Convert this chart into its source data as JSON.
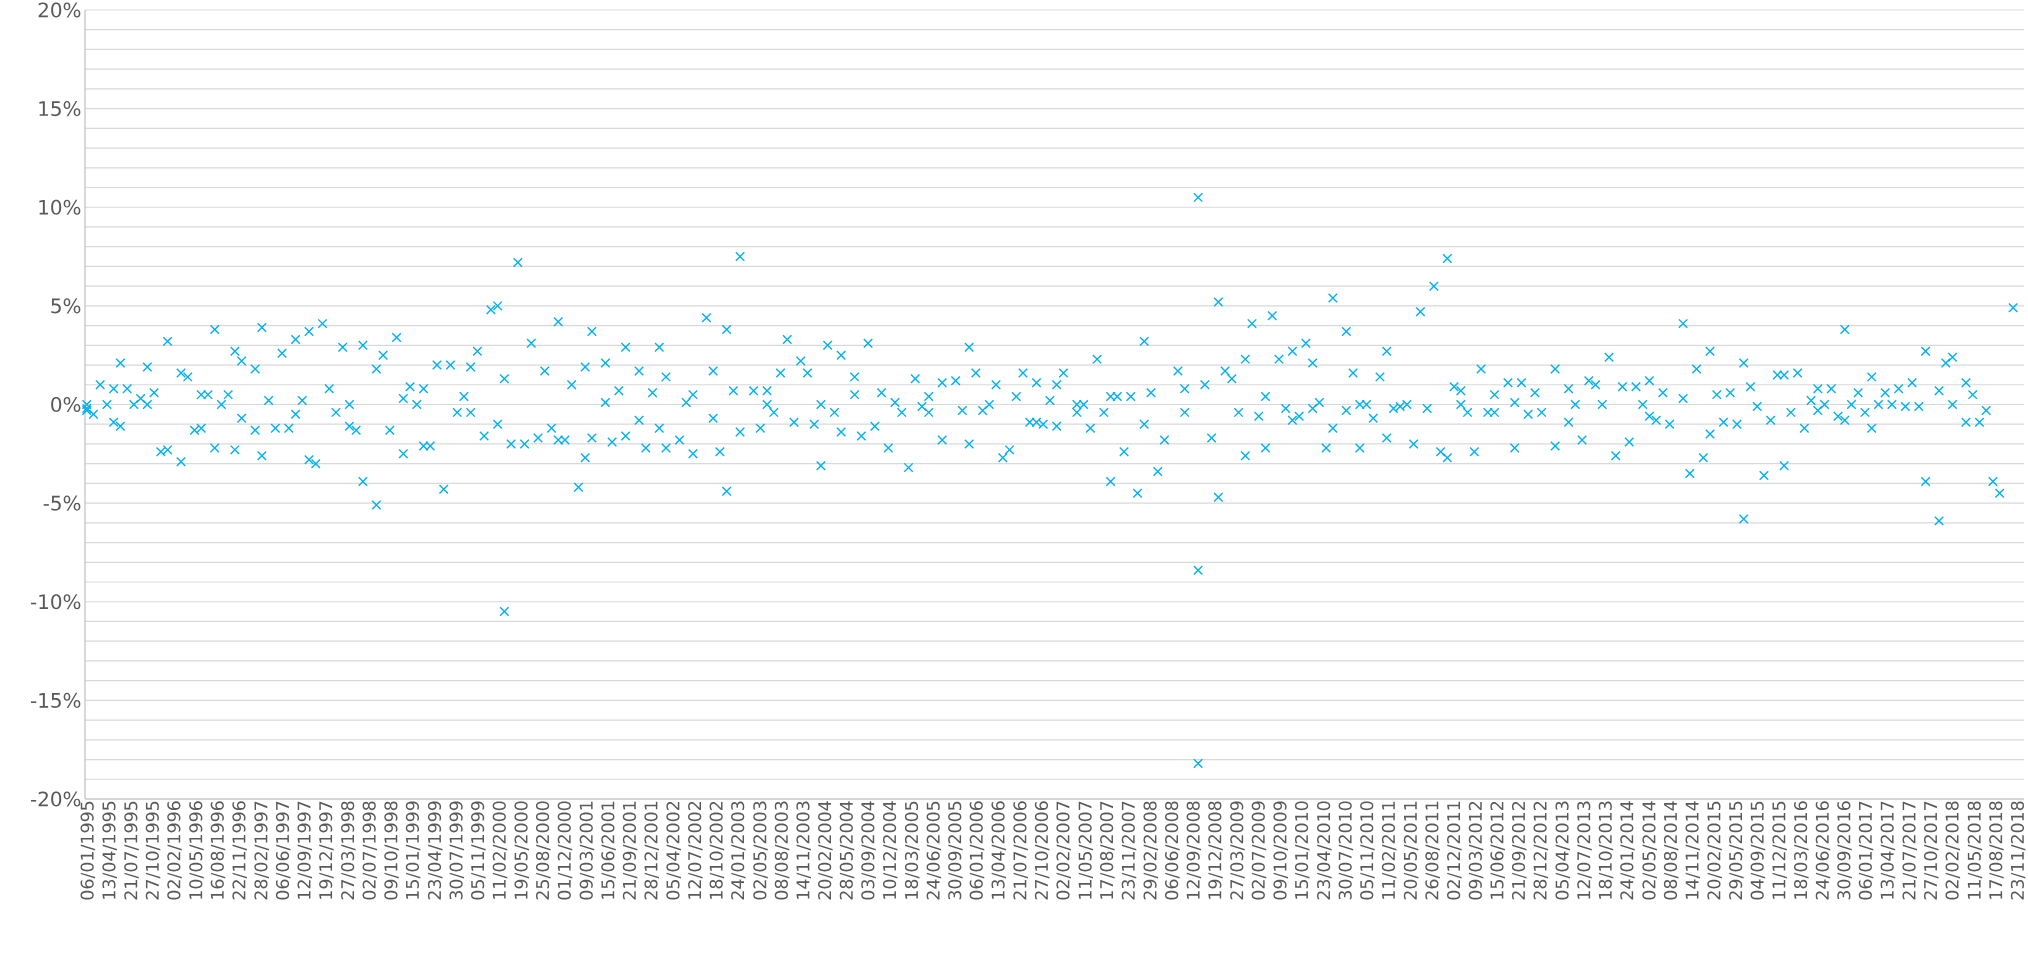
{
  "chart_data": {
    "type": "scatter",
    "color": "#00b0f0",
    "marker": "cross",
    "grid": "y",
    "x": [
      "1995-01",
      "1995-01",
      "1995-01",
      "1995-02",
      "1995-03",
      "1995-04",
      "1995-05",
      "1995-05",
      "1995-06",
      "1995-06",
      "1995-07",
      "1995-08",
      "1995-09",
      "1995-10",
      "1995-10",
      "1995-11",
      "1995-12",
      "1996-01",
      "1996-01",
      "1996-03",
      "1996-03",
      "1996-04",
      "1996-05",
      "1996-06",
      "1996-06",
      "1996-07",
      "1996-08",
      "1996-08",
      "1996-09",
      "1996-10",
      "1996-11",
      "1996-11",
      "1996-12",
      "1996-12",
      "1997-02",
      "1997-02",
      "1997-03",
      "1997-03",
      "1997-04",
      "1997-05",
      "1997-06",
      "1997-07",
      "1997-08",
      "1997-08",
      "1997-09",
      "1997-10",
      "1997-10",
      "1997-11",
      "1997-12",
      "1998-01",
      "1998-02",
      "1998-03",
      "1998-04",
      "1998-04",
      "1998-05",
      "1998-06",
      "1998-06",
      "1998-08",
      "1998-08",
      "1998-09",
      "1998-10",
      "1998-11",
      "1998-12",
      "1998-12",
      "1999-01",
      "1999-02",
      "1999-03",
      "1999-03",
      "1999-04",
      "1999-05",
      "1999-06",
      "1999-07",
      "1999-08",
      "1999-09",
      "1999-10",
      "1999-10",
      "1999-11",
      "1999-12",
      "2000-01",
      "2000-02",
      "2000-02",
      "2000-03",
      "2000-03",
      "2000-04",
      "2000-05",
      "2000-06",
      "2000-07",
      "2000-08",
      "2000-09",
      "2000-10",
      "2000-11",
      "2000-11",
      "2000-12",
      "2001-01",
      "2001-02",
      "2001-03",
      "2001-03",
      "2001-04",
      "2001-04",
      "2001-06",
      "2001-06",
      "2001-07",
      "2001-08",
      "2001-09",
      "2001-09",
      "2001-11",
      "2001-11",
      "2001-12",
      "2002-01",
      "2002-02",
      "2002-02",
      "2002-03",
      "2002-03",
      "2002-05",
      "2002-06",
      "2002-07",
      "2002-07",
      "2002-09",
      "2002-10",
      "2002-10",
      "2002-11",
      "2002-12",
      "2002-12",
      "2003-01",
      "2003-02",
      "2003-02",
      "2003-04",
      "2003-05",
      "2003-06",
      "2003-06",
      "2003-07",
      "2003-08",
      "2003-09",
      "2003-10",
      "2003-11",
      "2003-12",
      "2004-01",
      "2004-02",
      "2004-02",
      "2004-03",
      "2004-04",
      "2004-05",
      "2004-05",
      "2004-07",
      "2004-07",
      "2004-08",
      "2004-09",
      "2004-10",
      "2004-11",
      "2004-12",
      "2005-01",
      "2005-02",
      "2005-03",
      "2005-04",
      "2005-05",
      "2005-06",
      "2005-06",
      "2005-08",
      "2005-08",
      "2005-10",
      "2005-11",
      "2005-12",
      "2005-12",
      "2006-01",
      "2006-02",
      "2006-03",
      "2006-04",
      "2006-05",
      "2006-06",
      "2006-07",
      "2006-08",
      "2006-09",
      "2006-10",
      "2006-10",
      "2006-11",
      "2006-12",
      "2007-01",
      "2007-01",
      "2007-02",
      "2007-04",
      "2007-04",
      "2007-05",
      "2007-06",
      "2007-07",
      "2007-08",
      "2007-09",
      "2007-09",
      "2007-10",
      "2007-11",
      "2007-12",
      "2008-01",
      "2008-02",
      "2008-02",
      "2008-03",
      "2008-04",
      "2008-05",
      "2008-07",
      "2008-08",
      "2008-08",
      "2008-10",
      "2008-10",
      "2008-10",
      "2008-11",
      "2008-12",
      "2009-01",
      "2009-01",
      "2009-02",
      "2009-03",
      "2009-04",
      "2009-05",
      "2009-05",
      "2009-06",
      "2009-07",
      "2009-08",
      "2009-08",
      "2009-09",
      "2009-10",
      "2009-11",
      "2009-12",
      "2009-12",
      "2010-01",
      "2010-02",
      "2010-03",
      "2010-03",
      "2010-04",
      "2010-05",
      "2010-06",
      "2010-06",
      "2010-08",
      "2010-08",
      "2010-09",
      "2010-10",
      "2010-10",
      "2010-11",
      "2010-12",
      "2011-01",
      "2011-02",
      "2011-02",
      "2011-03",
      "2011-04",
      "2011-05",
      "2011-06",
      "2011-07",
      "2011-08",
      "2011-09",
      "2011-10",
      "2011-11",
      "2011-11",
      "2011-12",
      "2012-01",
      "2012-01",
      "2012-02",
      "2012-03",
      "2012-04",
      "2012-05",
      "2012-06",
      "2012-06",
      "2012-08",
      "2012-09",
      "2012-09",
      "2012-10",
      "2012-11",
      "2012-12",
      "2013-01",
      "2013-03",
      "2013-03",
      "2013-05",
      "2013-05",
      "2013-06",
      "2013-07",
      "2013-08",
      "2013-09",
      "2013-10",
      "2013-11",
      "2013-12",
      "2014-01",
      "2014-02",
      "2014-03",
      "2014-04",
      "2014-05",
      "2014-05",
      "2014-06",
      "2014-07",
      "2014-08",
      "2014-10",
      "2014-10",
      "2014-11",
      "2014-12",
      "2015-01",
      "2015-02",
      "2015-02",
      "2015-03",
      "2015-04",
      "2015-05",
      "2015-06",
      "2015-07",
      "2015-07",
      "2015-08",
      "2015-09",
      "2015-10",
      "2015-11",
      "2015-12",
      "2016-01",
      "2016-01",
      "2016-02",
      "2016-03",
      "2016-04",
      "2016-05",
      "2016-06",
      "2016-06",
      "2016-07",
      "2016-08",
      "2016-09",
      "2016-10",
      "2016-10",
      "2016-11",
      "2016-12",
      "2017-01",
      "2017-02",
      "2017-02",
      "2017-03",
      "2017-04",
      "2017-05",
      "2017-06",
      "2017-07",
      "2017-08",
      "2017-09",
      "2017-10",
      "2017-10",
      "2017-12",
      "2017-12",
      "2018-01",
      "2018-02",
      "2018-02",
      "2018-04",
      "2018-04",
      "2018-05",
      "2018-06",
      "2018-07",
      "2018-08",
      "2018-09",
      "2018-11"
    ],
    "values": [
      0,
      -0.2,
      -0.3,
      -0.5,
      1.0,
      0,
      0.8,
      -0.9,
      2.1,
      -1.1,
      0.8,
      0,
      0.3,
      1.9,
      0,
      0.6,
      -2.4,
      3.2,
      -2.3,
      -2.9,
      1.6,
      1.4,
      -1.3,
      0.5,
      -1.2,
      0.5,
      -2.2,
      3.8,
      0,
      0.5,
      -2.3,
      2.7,
      2.2,
      -0.7,
      1.8,
      -1.3,
      -2.6,
      3.9,
      0.2,
      -1.2,
      2.6,
      -1.2,
      3.3,
      -0.5,
      0.2,
      -2.8,
      3.7,
      -3.0,
      4.1,
      0.8,
      -0.4,
      2.9,
      -1.1,
      0,
      -1.3,
      3.0,
      -3.9,
      -5.1,
      1.8,
      2.5,
      -1.3,
      3.4,
      0.3,
      -2.5,
      0.9,
      0,
      0.8,
      -2.1,
      -2.1,
      2.0,
      -4.3,
      2.0,
      -0.4,
      0.4,
      1.9,
      -0.4,
      2.7,
      -1.6,
      4.8,
      5.0,
      -1.0,
      -10.5,
      1.3,
      -2.0,
      7.2,
      -2.0,
      3.1,
      -1.7,
      1.7,
      -1.2,
      -1.8,
      4.2,
      -1.8,
      1.0,
      -4.2,
      -2.7,
      1.9,
      -1.7,
      3.7,
      0.1,
      2.1,
      -1.9,
      0.7,
      -1.6,
      2.9,
      -0.8,
      1.7,
      -2.2,
      0.6,
      -1.2,
      2.9,
      1.4,
      -2.2,
      -1.8,
      0.1,
      0.5,
      -2.5,
      4.4,
      -0.7,
      1.7,
      -2.4,
      3.8,
      -4.4,
      0.7,
      7.5,
      -1.4,
      0.7,
      -1.2,
      0,
      0.7,
      -0.4,
      1.6,
      3.3,
      -0.9,
      2.2,
      1.6,
      -1.0,
      0,
      -3.1,
      3.0,
      -0.4,
      2.5,
      -1.4,
      1.4,
      0.5,
      -1.6,
      3.1,
      -1.1,
      0.6,
      -2.2,
      0.1,
      -0.4,
      -3.2,
      1.3,
      -0.1,
      0.4,
      -0.4,
      -1.8,
      1.1,
      1.2,
      -0.3,
      2.9,
      -2.0,
      1.6,
      -0.3,
      0,
      1.0,
      -2.7,
      -2.3,
      0.4,
      1.6,
      -0.9,
      1.1,
      -0.9,
      -1.0,
      0.2,
      1.0,
      -1.1,
      1.6,
      0,
      -0.4,
      0,
      -1.2,
      2.3,
      -0.4,
      0.4,
      -3.9,
      0.4,
      -2.4,
      0.4,
      -4.5,
      3.2,
      -1.0,
      0.6,
      -3.4,
      -1.8,
      1.7,
      -0.4,
      0.8,
      10.5,
      -8.4,
      -18.2,
      1.0,
      -1.7,
      5.2,
      -4.7,
      1.7,
      1.3,
      -0.4,
      -2.6,
      2.3,
      4.1,
      -0.6,
      0.4,
      -2.2,
      4.5,
      2.3,
      -0.2,
      2.7,
      -0.8,
      -0.6,
      3.1,
      -0.2,
      2.1,
      0.1,
      -2.2,
      -1.2,
      5.4,
      3.7,
      -0.3,
      1.6,
      -2.2,
      0,
      0,
      -0.7,
      1.4,
      -1.7,
      2.7,
      -0.2,
      -0.1,
      0,
      -2.0,
      4.7,
      -0.2,
      6.0,
      -2.4,
      7.4,
      -2.7,
      0.9,
      0,
      0.7,
      -0.4,
      -2.4,
      1.8,
      -0.4,
      0.5,
      -0.4,
      1.1,
      -2.2,
      0.1,
      1.1,
      -0.5,
      0.6,
      -0.4,
      -2.1,
      1.8,
      -0.9,
      0.8,
      0,
      -1.8,
      1.2,
      1.0,
      0,
      2.4,
      -2.6,
      0.9,
      -1.9,
      0.9,
      0,
      1.2,
      -0.6,
      -0.8,
      0.6,
      -1.0,
      4.1,
      0.3,
      -3.5,
      1.8,
      -2.7,
      2.7,
      -1.5,
      0.5,
      -0.9,
      0.6,
      -1.0,
      -5.8,
      2.1,
      0.9,
      -0.1,
      -3.6,
      -0.8,
      1.5,
      -3.1,
      1.5,
      -0.4,
      1.6,
      -1.2,
      0.2,
      0.8,
      -0.3,
      0,
      0.8,
      -0.6,
      3.8,
      -0.8,
      0,
      0.6,
      -0.4,
      -1.2,
      1.4,
      0,
      0.6,
      0,
      0.8,
      -0.1,
      1.1,
      -0.1,
      2.7,
      -3.9,
      0.7,
      -5.9,
      2.1,
      2.4,
      0,
      1.1,
      -0.9,
      0.5,
      -0.9,
      -0.3,
      -3.9,
      -4.5,
      4.9
    ],
    "xlim": [
      "1994-12-24",
      "2018-12-20"
    ],
    "xticks": [
      {
        "value": "1995-01-06",
        "label": "06/01/1995"
      },
      {
        "value": "1995-04-13",
        "label": "13/04/1995"
      },
      {
        "value": "1995-07-21",
        "label": "21/07/1995"
      },
      {
        "value": "1995-10-27",
        "label": "27/10/1995"
      },
      {
        "value": "1996-02-02",
        "label": "02/02/1996"
      },
      {
        "value": "1996-05-10",
        "label": "10/05/1996"
      },
      {
        "value": "1996-08-16",
        "label": "16/08/1996"
      },
      {
        "value": "1996-11-22",
        "label": "22/11/1996"
      },
      {
        "value": "1997-02-28",
        "label": "28/02/1997"
      },
      {
        "value": "1997-06-06",
        "label": "06/06/1997"
      },
      {
        "value": "1997-09-12",
        "label": "12/09/1997"
      },
      {
        "value": "1997-12-19",
        "label": "19/12/1997"
      },
      {
        "value": "1998-03-27",
        "label": "27/03/1998"
      },
      {
        "value": "1998-07-02",
        "label": "02/07/1998"
      },
      {
        "value": "1998-10-09",
        "label": "09/10/1998"
      },
      {
        "value": "1999-01-15",
        "label": "15/01/1999"
      },
      {
        "value": "1999-04-23",
        "label": "23/04/1999"
      },
      {
        "value": "1999-07-30",
        "label": "30/07/1999"
      },
      {
        "value": "1999-11-05",
        "label": "05/11/1999"
      },
      {
        "value": "2000-02-11",
        "label": "11/02/2000"
      },
      {
        "value": "2000-05-19",
        "label": "19/05/2000"
      },
      {
        "value": "2000-08-25",
        "label": "25/08/2000"
      },
      {
        "value": "2000-12-01",
        "label": "01/12/2000"
      },
      {
        "value": "2001-03-09",
        "label": "09/03/2001"
      },
      {
        "value": "2001-06-15",
        "label": "15/06/2001"
      },
      {
        "value": "2001-09-21",
        "label": "21/09/2001"
      },
      {
        "value": "2001-12-28",
        "label": "28/12/2001"
      },
      {
        "value": "2002-04-05",
        "label": "05/04/2002"
      },
      {
        "value": "2002-07-12",
        "label": "12/07/2002"
      },
      {
        "value": "2002-10-18",
        "label": "18/10/2002"
      },
      {
        "value": "2003-01-24",
        "label": "24/01/2003"
      },
      {
        "value": "2003-05-02",
        "label": "02/05/2003"
      },
      {
        "value": "2003-08-08",
        "label": "08/08/2003"
      },
      {
        "value": "2003-11-14",
        "label": "14/11/2003"
      },
      {
        "value": "2004-02-20",
        "label": "20/02/2004"
      },
      {
        "value": "2004-05-28",
        "label": "28/05/2004"
      },
      {
        "value": "2004-09-03",
        "label": "03/09/2004"
      },
      {
        "value": "2004-12-10",
        "label": "10/12/2004"
      },
      {
        "value": "2005-03-18",
        "label": "18/03/2005"
      },
      {
        "value": "2005-06-24",
        "label": "24/06/2005"
      },
      {
        "value": "2005-09-30",
        "label": "30/09/2005"
      },
      {
        "value": "2006-01-06",
        "label": "06/01/2006"
      },
      {
        "value": "2006-04-13",
        "label": "13/04/2006"
      },
      {
        "value": "2006-07-21",
        "label": "21/07/2006"
      },
      {
        "value": "2006-10-27",
        "label": "27/10/2006"
      },
      {
        "value": "2007-02-02",
        "label": "02/02/2007"
      },
      {
        "value": "2007-05-11",
        "label": "11/05/2007"
      },
      {
        "value": "2007-08-17",
        "label": "17/08/2007"
      },
      {
        "value": "2007-11-23",
        "label": "23/11/2007"
      },
      {
        "value": "2008-02-29",
        "label": "29/02/2008"
      },
      {
        "value": "2008-06-06",
        "label": "06/06/2008"
      },
      {
        "value": "2008-09-12",
        "label": "12/09/2008"
      },
      {
        "value": "2008-12-19",
        "label": "19/12/2008"
      },
      {
        "value": "2009-03-27",
        "label": "27/03/2009"
      },
      {
        "value": "2009-07-02",
        "label": "02/07/2009"
      },
      {
        "value": "2009-10-09",
        "label": "09/10/2009"
      },
      {
        "value": "2010-01-15",
        "label": "15/01/2010"
      },
      {
        "value": "2010-04-23",
        "label": "23/04/2010"
      },
      {
        "value": "2010-07-30",
        "label": "30/07/2010"
      },
      {
        "value": "2010-11-05",
        "label": "05/11/2010"
      },
      {
        "value": "2011-02-11",
        "label": "11/02/2011"
      },
      {
        "value": "2011-05-20",
        "label": "20/05/2011"
      },
      {
        "value": "2011-08-26",
        "label": "26/08/2011"
      },
      {
        "value": "2011-12-02",
        "label": "02/12/2011"
      },
      {
        "value": "2012-03-09",
        "label": "09/03/2012"
      },
      {
        "value": "2012-06-15",
        "label": "15/06/2012"
      },
      {
        "value": "2012-09-21",
        "label": "21/09/2012"
      },
      {
        "value": "2012-12-28",
        "label": "28/12/2012"
      },
      {
        "value": "2013-04-05",
        "label": "05/04/2013"
      },
      {
        "value": "2013-07-12",
        "label": "12/07/2013"
      },
      {
        "value": "2013-10-18",
        "label": "18/10/2013"
      },
      {
        "value": "2014-01-24",
        "label": "24/01/2014"
      },
      {
        "value": "2014-05-02",
        "label": "02/05/2014"
      },
      {
        "value": "2014-08-08",
        "label": "08/08/2014"
      },
      {
        "value": "2014-11-14",
        "label": "14/11/2014"
      },
      {
        "value": "2015-02-20",
        "label": "20/02/2015"
      },
      {
        "value": "2015-05-29",
        "label": "29/05/2015"
      },
      {
        "value": "2015-09-04",
        "label": "04/09/2015"
      },
      {
        "value": "2015-12-11",
        "label": "11/12/2015"
      },
      {
        "value": "2016-03-18",
        "label": "18/03/2016"
      },
      {
        "value": "2016-06-24",
        "label": "24/06/2016"
      },
      {
        "value": "2016-09-30",
        "label": "30/09/2016"
      },
      {
        "value": "2017-01-06",
        "label": "06/01/2017"
      },
      {
        "value": "2017-04-13",
        "label": "13/04/2017"
      },
      {
        "value": "2017-07-21",
        "label": "21/07/2017"
      },
      {
        "value": "2017-10-27",
        "label": "27/10/2017"
      },
      {
        "value": "2018-02-02",
        "label": "02/02/2018"
      },
      {
        "value": "2018-05-11",
        "label": "11/05/2018"
      },
      {
        "value": "2018-08-17",
        "label": "17/08/2018"
      },
      {
        "value": "2018-11-23",
        "label": "23/11/2018"
      }
    ],
    "ylim": [
      -20,
      20
    ],
    "yticks": [
      {
        "value": -20,
        "label": "-20%"
      },
      {
        "value": -19,
        "label": null
      },
      {
        "value": -18,
        "label": null
      },
      {
        "value": -17,
        "label": null
      },
      {
        "value": -16,
        "label": null
      },
      {
        "value": -15,
        "label": "-15%"
      },
      {
        "value": -14,
        "label": null
      },
      {
        "value": -13,
        "label": null
      },
      {
        "value": -12,
        "label": null
      },
      {
        "value": -11,
        "label": null
      },
      {
        "value": -10,
        "label": "-10%"
      },
      {
        "value": -9,
        "label": null
      },
      {
        "value": -8,
        "label": null
      },
      {
        "value": -7,
        "label": null
      },
      {
        "value": -6,
        "label": null
      },
      {
        "value": -5,
        "label": "-5%"
      },
      {
        "value": -4,
        "label": null
      },
      {
        "value": -3,
        "label": null
      },
      {
        "value": -2,
        "label": null
      },
      {
        "value": -1,
        "label": null
      },
      {
        "value": 0,
        "label": "0%"
      },
      {
        "value": 1,
        "label": null
      },
      {
        "value": 2,
        "label": null
      },
      {
        "value": 3,
        "label": null
      },
      {
        "value": 4,
        "label": null
      },
      {
        "value": 5,
        "label": "5%"
      },
      {
        "value": 6,
        "label": null
      },
      {
        "value": 7,
        "label": null
      },
      {
        "value": 8,
        "label": null
      },
      {
        "value": 9,
        "label": null
      },
      {
        "value": 10,
        "label": "10%"
      },
      {
        "value": 11,
        "label": null
      },
      {
        "value": 12,
        "label": null
      },
      {
        "value": 13,
        "label": null
      },
      {
        "value": 14,
        "label": null
      },
      {
        "value": 15,
        "label": "15%"
      },
      {
        "value": 16,
        "label": null
      },
      {
        "value": 17,
        "label": null
      },
      {
        "value": 18,
        "label": null
      },
      {
        "value": 19,
        "label": null
      },
      {
        "value": 20,
        "label": "20%"
      }
    ]
  }
}
